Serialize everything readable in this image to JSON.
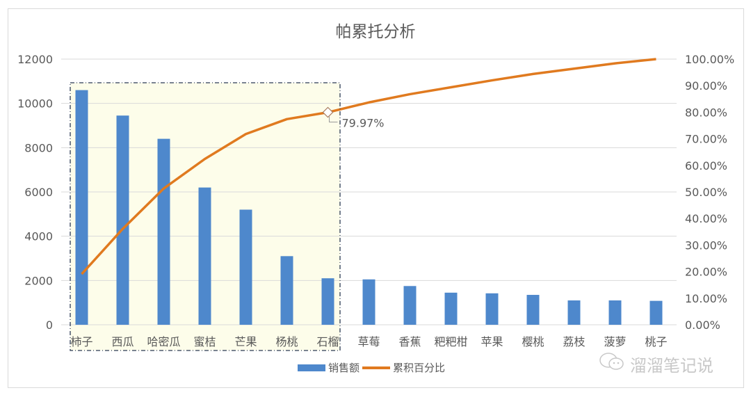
{
  "chart_data": {
    "type": "bar+line",
    "title": "帕累托分析",
    "categories": [
      "柿子",
      "西瓜",
      "哈密瓜",
      "蜜桔",
      "芒果",
      "杨桃",
      "石榴",
      "草莓",
      "香蕉",
      "粑粑柑",
      "苹果",
      "樱桃",
      "荔枝",
      "菠萝",
      "桃子"
    ],
    "series": [
      {
        "name": "销售额",
        "type": "bar",
        "axis": "left",
        "color": "#4e88cc",
        "values": [
          10600,
          9450,
          8400,
          6200,
          5200,
          3100,
          2100,
          2050,
          1750,
          1450,
          1420,
          1350,
          1100,
          1100,
          1080
        ]
      },
      {
        "name": "累积百分比",
        "type": "line",
        "axis": "right",
        "color": "#e07a1f",
        "values": [
          19.1,
          36.1,
          51.3,
          62.4,
          71.8,
          77.4,
          79.97,
          83.7,
          86.8,
          89.4,
          92.0,
          94.4,
          96.4,
          98.4,
          100.0
        ]
      }
    ],
    "y_left": {
      "min": 0,
      "max": 12000,
      "ticks": [
        "0",
        "2000",
        "4000",
        "6000",
        "8000",
        "10000",
        "12000"
      ]
    },
    "y_right": {
      "min": 0,
      "max": 100,
      "ticks": [
        "0.00%",
        "10.00%",
        "20.00%",
        "30.00%",
        "40.00%",
        "50.00%",
        "60.00%",
        "70.00%",
        "80.00%",
        "90.00%",
        "100.00%"
      ]
    },
    "annotation": {
      "label": "79.97%",
      "category": "石榴"
    },
    "highlight_region": {
      "from": "柿子",
      "to": "石榴",
      "fill": "#fdfdea"
    },
    "grid": true,
    "legend_position": "bottom"
  },
  "legend": {
    "bar": "销售额",
    "line": "累积百分比"
  },
  "watermark": "溜溜笔记说"
}
